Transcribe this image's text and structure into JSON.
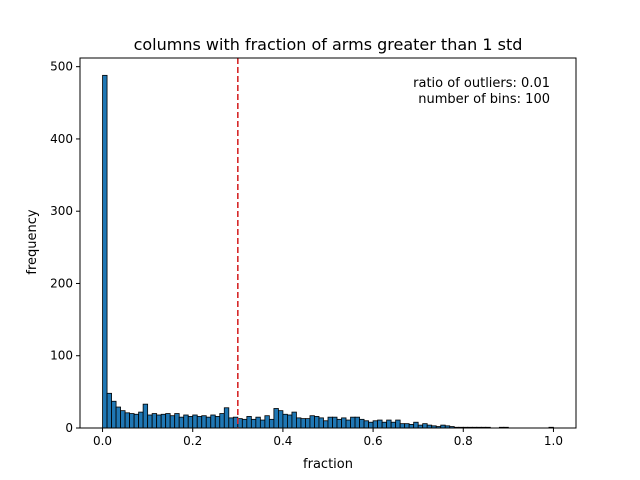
{
  "chart_data": {
    "type": "bar",
    "title": "columns with fraction of arms greater than 1 std",
    "xlabel": "fraction",
    "ylabel": "frequency",
    "xlim": [
      -0.05,
      1.05
    ],
    "ylim": [
      0,
      512
    ],
    "xticks": [
      0.0,
      0.2,
      0.4,
      0.6,
      0.8,
      1.0
    ],
    "xtick_labels": [
      "0.0",
      "0.2",
      "0.4",
      "0.6",
      "0.8",
      "1.0"
    ],
    "yticks": [
      0,
      100,
      200,
      300,
      400,
      500
    ],
    "ytick_labels": [
      "0",
      "100",
      "200",
      "300",
      "400",
      "500"
    ],
    "grid": false,
    "bin_start": 0.0,
    "bin_width": 0.01,
    "bar_color": "#1f77b4",
    "bar_edge_color": "#000000",
    "values": [
      488,
      48,
      37,
      29,
      24,
      21,
      20,
      19,
      22,
      33,
      18,
      20,
      18,
      19,
      20,
      17,
      20,
      15,
      18,
      16,
      18,
      16,
      17,
      15,
      18,
      16,
      20,
      28,
      14,
      15,
      13,
      12,
      16,
      12,
      15,
      11,
      17,
      12,
      27,
      24,
      19,
      18,
      22,
      14,
      13,
      13,
      17,
      16,
      14,
      10,
      15,
      15,
      12,
      14,
      11,
      15,
      15,
      12,
      10,
      8,
      10,
      11,
      8,
      11,
      8,
      11,
      6,
      6,
      5,
      8,
      4,
      6,
      4,
      3,
      2,
      4,
      3,
      2,
      1,
      1,
      1,
      1,
      1,
      1,
      1,
      1,
      0,
      0,
      1,
      1,
      0,
      0,
      0,
      0,
      0,
      0,
      0,
      0,
      0,
      1
    ],
    "reference_line": {
      "x": 0.3,
      "color": "#d62728",
      "style": "dashed"
    },
    "annotation": [
      "ratio of outliers: 0.01",
      "number of bins: 100"
    ]
  }
}
